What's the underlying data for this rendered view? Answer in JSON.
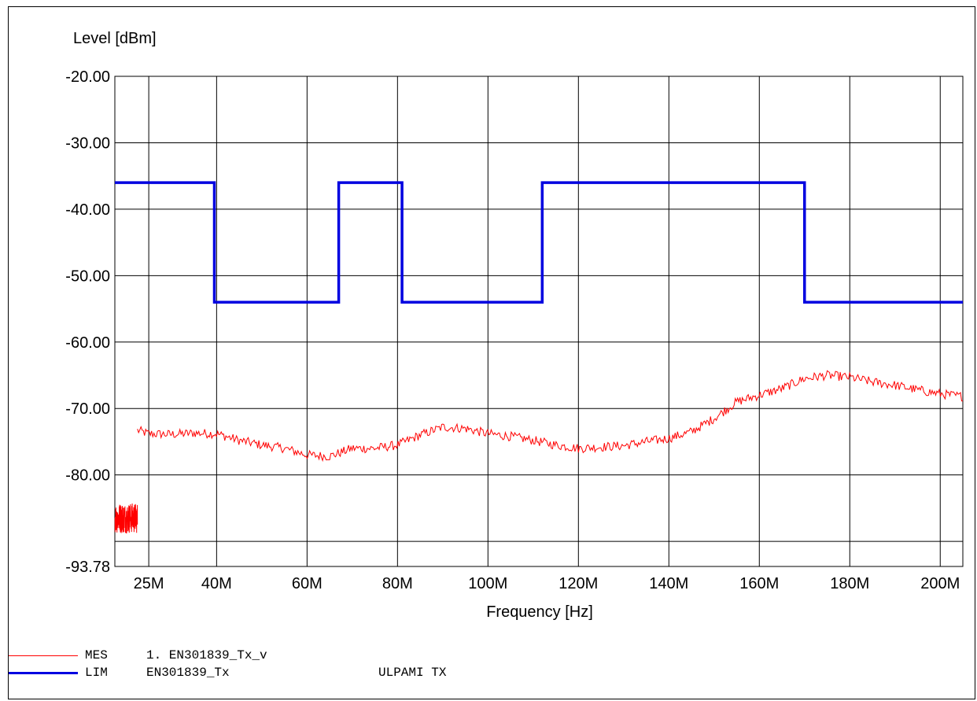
{
  "chart_data": {
    "type": "line",
    "ylabel": "Level [dBm]",
    "xlabel": "Frequency [Hz]",
    "xlim": [
      17500000,
      205000000
    ],
    "ylim": [
      -93.78,
      -20
    ],
    "x_ticks": [
      {
        "value": 25000000,
        "label": "25M"
      },
      {
        "value": 40000000,
        "label": "40M"
      },
      {
        "value": 60000000,
        "label": "60M"
      },
      {
        "value": 80000000,
        "label": "80M"
      },
      {
        "value": 100000000,
        "label": "100M"
      },
      {
        "value": 120000000,
        "label": "120M"
      },
      {
        "value": 140000000,
        "label": "140M"
      },
      {
        "value": 160000000,
        "label": "160M"
      },
      {
        "value": 180000000,
        "label": "180M"
      },
      {
        "value": 200000000,
        "label": "200M"
      }
    ],
    "x_gridlines": [
      25000000,
      40000000,
      60000000,
      80000000,
      100000000,
      120000000,
      140000000,
      160000000,
      180000000,
      200000000
    ],
    "y_ticks": [
      {
        "value": -20,
        "label": "-20.00"
      },
      {
        "value": -30,
        "label": "-30.00"
      },
      {
        "value": -40,
        "label": "-40.00"
      },
      {
        "value": -50,
        "label": "-50.00"
      },
      {
        "value": -60,
        "label": "-60.00"
      },
      {
        "value": -70,
        "label": "-70.00"
      },
      {
        "value": -80,
        "label": "-80.00"
      },
      {
        "value": -93.78,
        "label": "-93.78"
      }
    ],
    "y_gridlines": [
      -30,
      -40,
      -50,
      -60,
      -70,
      -80,
      -90
    ],
    "grid": true,
    "series": [
      {
        "name": "MES",
        "color": "#ff0000",
        "style": "noisy-line",
        "x": [
          22500000,
          25000000,
          30000000,
          35000000,
          40000000,
          45000000,
          50000000,
          55000000,
          60000000,
          65000000,
          70000000,
          75000000,
          80000000,
          85000000,
          90000000,
          95000000,
          100000000,
          105000000,
          110000000,
          115000000,
          120000000,
          125000000,
          130000000,
          135000000,
          140000000,
          145000000,
          150000000,
          155000000,
          160000000,
          165000000,
          170000000,
          175000000,
          180000000,
          185000000,
          190000000,
          195000000,
          200000000,
          205000000
        ],
        "values": [
          -73.3,
          -73.8,
          -73.9,
          -73.7,
          -73.8,
          -74.8,
          -75.5,
          -76.0,
          -77.0,
          -77.2,
          -76.0,
          -76.0,
          -75.5,
          -74.0,
          -72.8,
          -73.0,
          -73.8,
          -74.2,
          -74.8,
          -75.5,
          -76.0,
          -75.8,
          -75.6,
          -75.0,
          -74.5,
          -73.5,
          -71.5,
          -69.0,
          -68.0,
          -67.0,
          -65.5,
          -65.0,
          -65.3,
          -66.0,
          -66.5,
          -67.2,
          -67.8,
          -68.2
        ]
      },
      {
        "name": "MES-segment-1",
        "color": "#ff0000",
        "style": "dense-noise",
        "x": [
          17500000,
          22500000
        ],
        "values": [
          -86.5,
          -86.5
        ]
      },
      {
        "name": "LIM",
        "color": "#0000e0",
        "style": "step",
        "x": [
          17500000,
          39500000,
          39500000,
          67000000,
          67000000,
          81000000,
          81000000,
          112000000,
          112000000,
          170000000,
          170000000,
          205000000
        ],
        "values": [
          -36,
          -36,
          -54,
          -54,
          -36,
          -36,
          -54,
          -54,
          -36,
          -36,
          -54,
          -54
        ]
      }
    ]
  },
  "legend": [
    {
      "color": "#ff0000",
      "tag": "MES",
      "name": "1. EN301839_Tx_v",
      "note": ""
    },
    {
      "color": "#0000e0",
      "tag": "LIM",
      "name": "EN301839_Tx",
      "note": "ULPAMI TX"
    }
  ]
}
